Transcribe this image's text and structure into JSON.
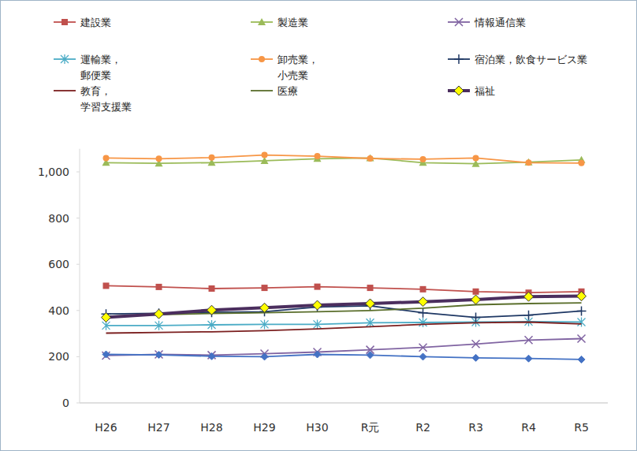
{
  "chart_data": {
    "type": "line",
    "categories": [
      "H26",
      "H27",
      "H28",
      "H29",
      "H30",
      "R元",
      "R2",
      "R3",
      "R4",
      "R5"
    ],
    "ylim": [
      0,
      1100
    ],
    "yticks": [
      0,
      200,
      400,
      600,
      800,
      {
        "value": 1000,
        "label": "1,000"
      }
    ],
    "grid": false,
    "legend": "top",
    "series": [
      {
        "name": "建設業",
        "color": "#c0504d",
        "marker": "square",
        "line_style": "solid",
        "values": [
          507,
          502,
          495,
          498,
          503,
          498,
          492,
          482,
          477,
          482
        ]
      },
      {
        "name": "製造業",
        "color": "#9bbb59",
        "marker": "triangle",
        "line_style": "solid",
        "values": [
          1040,
          1037,
          1040,
          1048,
          1057,
          1060,
          1040,
          1035,
          1042,
          1052
        ]
      },
      {
        "name": "情報通信業",
        "color": "#8064a2",
        "marker": "x",
        "line_style": "solid",
        "values": [
          205,
          210,
          207,
          213,
          220,
          230,
          240,
          255,
          272,
          278
        ]
      },
      {
        "name": "運輸業，\n郵便業",
        "color": "#4bacc6",
        "marker": "asterisk",
        "line_style": "solid",
        "values": [
          335,
          335,
          338,
          340,
          340,
          347,
          348,
          350,
          352,
          350
        ]
      },
      {
        "name": "卸売業，\n小売業",
        "color": "#f79646",
        "marker": "circle",
        "line_style": "solid",
        "values": [
          1060,
          1057,
          1062,
          1073,
          1068,
          1058,
          1055,
          1060,
          1040,
          1038
        ]
      },
      {
        "name": "宿泊業，飲食サービス業",
        "color": "#1f3864",
        "marker": "plus",
        "line_style": "solid",
        "values": [
          385,
          388,
          392,
          395,
          415,
          420,
          390,
          370,
          380,
          398
        ]
      },
      {
        "name": "教育，\n学習支援業",
        "color": "#7b1f1f",
        "marker": "none",
        "line_style": "solid",
        "values": [
          302,
          305,
          308,
          313,
          320,
          330,
          340,
          347,
          350,
          342
        ]
      },
      {
        "name": "医療",
        "color": "#5a6e2b",
        "marker": "none",
        "line_style": "solid",
        "values": [
          375,
          382,
          387,
          390,
          395,
          400,
          410,
          425,
          430,
          433
        ]
      },
      {
        "name": "福祉",
        "color": "#4b2e5e",
        "marker": "diamond",
        "line_style": "bold",
        "values": [
          370,
          385,
          402,
          412,
          423,
          430,
          438,
          447,
          460,
          462
        ]
      },
      {
        "name": null,
        "color": "#4472c4",
        "marker": "diamond",
        "line_style": "solid",
        "values": [
          210,
          208,
          202,
          200,
          210,
          207,
          200,
          195,
          192,
          188
        ]
      }
    ]
  }
}
